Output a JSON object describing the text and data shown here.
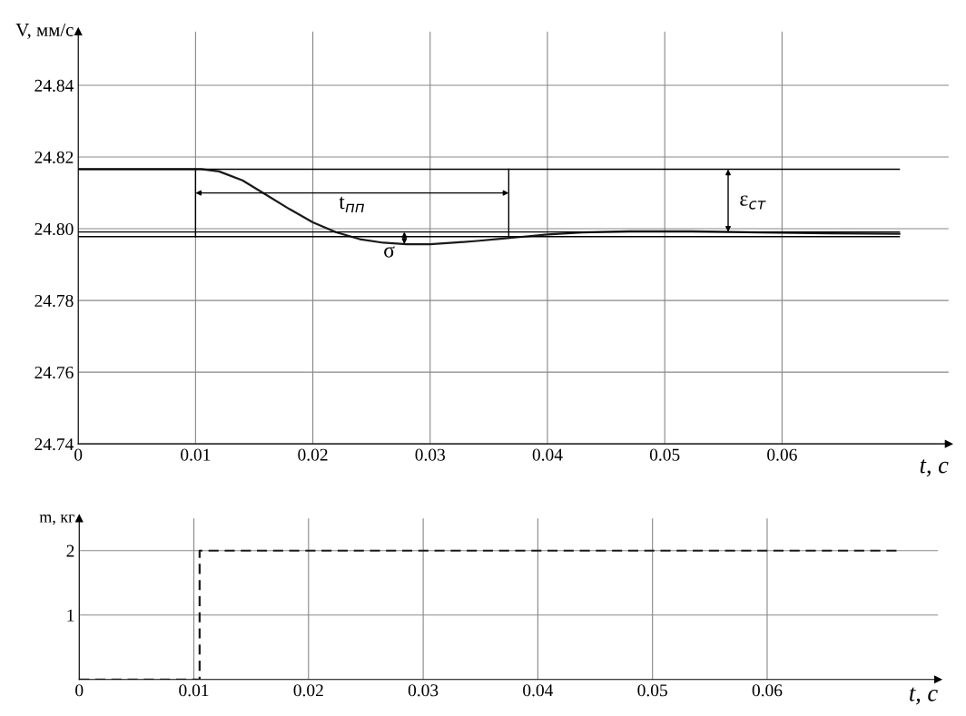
{
  "chart_data": [
    {
      "type": "line",
      "xlabel": "t, с",
      "ylabel": "V, мм/с",
      "series": [
        {
          "color": "#1a1a1a",
          "x": [
            0,
            0.0105,
            0.012,
            0.014,
            0.016,
            0.018,
            0.02,
            0.022,
            0.024,
            0.026,
            0.028,
            0.03,
            0.032,
            0.034,
            0.036,
            0.038,
            0.04,
            0.043,
            0.047,
            0.052,
            0.058,
            0.064,
            0.07
          ],
          "values": [
            24.8166,
            24.8166,
            24.816,
            24.8135,
            24.8095,
            24.8055,
            24.8018,
            24.799,
            24.7971,
            24.7961,
            24.7957,
            24.7957,
            24.7961,
            24.7966,
            24.7972,
            24.7978,
            24.7984,
            24.799,
            24.7993,
            24.7993,
            24.799,
            24.7987,
            24.7986
          ]
        }
      ],
      "xlim": [
        0,
        0.0742
      ],
      "ylim": [
        24.74,
        24.855
      ],
      "xticks": [
        0,
        0.01,
        0.02,
        0.03,
        0.04,
        0.05,
        0.06
      ],
      "yticks": [
        24.74,
        24.76,
        24.78,
        {
          "value": 24.8,
          "label": "24.80"
        },
        24.82,
        24.84
      ],
      "grid": true,
      "line_style": "solid",
      "ref_lines": [
        {
          "axis": "y",
          "value": 24.8166,
          "color": "#000000"
        },
        {
          "axis": "y",
          "value": 24.7991,
          "color": "#000000"
        },
        {
          "axis": "y",
          "value": 24.7978,
          "color": "#000000"
        },
        {
          "axis": "x",
          "value": 0.01,
          "color": "#000000"
        },
        {
          "axis": "x",
          "value": 0.0367,
          "color": "#000000"
        }
      ],
      "annotations": [
        "t$_{пп}$",
        "σ",
        "ε$_{ст}$"
      ]
    },
    {
      "type": "step",
      "xlabel": "t, с",
      "ylabel": "m, кг",
      "series": [
        {
          "color": "#1a1a1a",
          "x": [
            0,
            0.0105,
            0.0714
          ],
          "values": [
            0,
            2,
            2
          ]
        }
      ],
      "xlim": [
        0,
        0.0749
      ],
      "ylim": [
        0,
        2.5
      ],
      "xticks": [
        0,
        0.01,
        0.02,
        0.03,
        0.04,
        0.05,
        0.06
      ],
      "yticks": [
        1,
        2
      ],
      "grid": true,
      "line_style": "dashed"
    }
  ]
}
